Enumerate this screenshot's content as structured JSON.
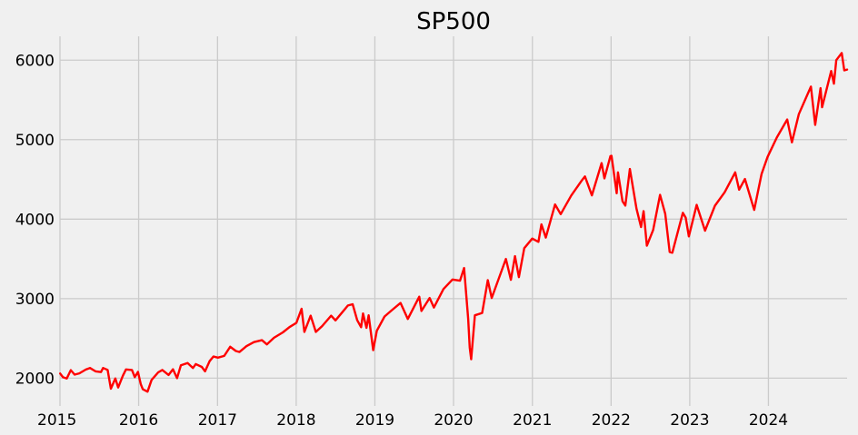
{
  "chart_data": {
    "type": "line",
    "title": "SP500",
    "xlabel": "",
    "ylabel": "",
    "grid": true,
    "legend": "none",
    "xlim": [
      "2015-01-01",
      "2024-12-31"
    ],
    "ylim": [
      1650,
      6300
    ],
    "x_ticks": [
      "2015",
      "2016",
      "2017",
      "2018",
      "2019",
      "2020",
      "2021",
      "2022",
      "2023",
      "2024"
    ],
    "y_ticks": [
      2000,
      3000,
      4000,
      5000,
      6000
    ],
    "series": [
      {
        "color": "#ff0000",
        "points": [
          [
            "2015-01-02",
            2058
          ],
          [
            "2015-01-15",
            2011
          ],
          [
            "2015-02-01",
            1995
          ],
          [
            "2015-02-20",
            2100
          ],
          [
            "2015-03-10",
            2044
          ],
          [
            "2015-04-01",
            2060
          ],
          [
            "2015-05-01",
            2108
          ],
          [
            "2015-05-20",
            2127
          ],
          [
            "2015-06-15",
            2085
          ],
          [
            "2015-07-10",
            2076
          ],
          [
            "2015-07-20",
            2128
          ],
          [
            "2015-08-10",
            2104
          ],
          [
            "2015-08-25",
            1867
          ],
          [
            "2015-09-15",
            1996
          ],
          [
            "2015-09-28",
            1882
          ],
          [
            "2015-10-20",
            2030
          ],
          [
            "2015-11-03",
            2109
          ],
          [
            "2015-12-01",
            2102
          ],
          [
            "2015-12-14",
            2012
          ],
          [
            "2015-12-29",
            2078
          ],
          [
            "2016-01-11",
            1923
          ],
          [
            "2016-01-20",
            1860
          ],
          [
            "2016-02-11",
            1829
          ],
          [
            "2016-03-01",
            1978
          ],
          [
            "2016-04-01",
            2073
          ],
          [
            "2016-04-20",
            2102
          ],
          [
            "2016-05-19",
            2040
          ],
          [
            "2016-06-08",
            2112
          ],
          [
            "2016-06-27",
            2000
          ],
          [
            "2016-07-15",
            2161
          ],
          [
            "2016-08-15",
            2190
          ],
          [
            "2016-09-09",
            2127
          ],
          [
            "2016-09-22",
            2177
          ],
          [
            "2016-10-20",
            2141
          ],
          [
            "2016-11-04",
            2085
          ],
          [
            "2016-11-25",
            2213
          ],
          [
            "2016-12-13",
            2271
          ],
          [
            "2017-01-03",
            2258
          ],
          [
            "2017-02-01",
            2279
          ],
          [
            "2017-03-01",
            2395
          ],
          [
            "2017-03-27",
            2341
          ],
          [
            "2017-04-13",
            2329
          ],
          [
            "2017-05-15",
            2402
          ],
          [
            "2017-06-19",
            2453
          ],
          [
            "2017-07-26",
            2477
          ],
          [
            "2017-08-18",
            2425
          ],
          [
            "2017-09-20",
            2508
          ],
          [
            "2017-10-31",
            2575
          ],
          [
            "2017-12-01",
            2642
          ],
          [
            "2018-01-02",
            2695
          ],
          [
            "2018-01-26",
            2872
          ],
          [
            "2018-02-08",
            2581
          ],
          [
            "2018-03-09",
            2786
          ],
          [
            "2018-04-02",
            2581
          ],
          [
            "2018-05-01",
            2654
          ],
          [
            "2018-06-12",
            2786
          ],
          [
            "2018-07-02",
            2726
          ],
          [
            "2018-08-29",
            2914
          ],
          [
            "2018-09-20",
            2930
          ],
          [
            "2018-10-11",
            2728
          ],
          [
            "2018-10-29",
            2641
          ],
          [
            "2018-11-07",
            2813
          ],
          [
            "2018-11-23",
            2633
          ],
          [
            "2018-12-03",
            2790
          ],
          [
            "2018-12-24",
            2351
          ],
          [
            "2019-01-10",
            2596
          ],
          [
            "2019-02-15",
            2775
          ],
          [
            "2019-03-21",
            2855
          ],
          [
            "2019-04-30",
            2946
          ],
          [
            "2019-06-03",
            2744
          ],
          [
            "2019-07-26",
            3025
          ],
          [
            "2019-08-05",
            2845
          ],
          [
            "2019-09-12",
            3009
          ],
          [
            "2019-10-02",
            2888
          ],
          [
            "2019-11-15",
            3120
          ],
          [
            "2019-12-27",
            3240
          ],
          [
            "2020-01-31",
            3226
          ],
          [
            "2020-02-19",
            3386
          ],
          [
            "2020-03-09",
            2747
          ],
          [
            "2020-03-16",
            2386
          ],
          [
            "2020-03-23",
            2237
          ],
          [
            "2020-04-09",
            2790
          ],
          [
            "2020-05-13",
            2820
          ],
          [
            "2020-06-08",
            3232
          ],
          [
            "2020-06-26",
            3009
          ],
          [
            "2020-08-31",
            3500
          ],
          [
            "2020-09-23",
            3237
          ],
          [
            "2020-10-12",
            3534
          ],
          [
            "2020-10-30",
            3270
          ],
          [
            "2020-11-24",
            3635
          ],
          [
            "2020-12-31",
            3756
          ],
          [
            "2021-01-29",
            3714
          ],
          [
            "2021-02-12",
            3934
          ],
          [
            "2021-03-04",
            3768
          ],
          [
            "2021-04-16",
            4185
          ],
          [
            "2021-05-12",
            4063
          ],
          [
            "2021-06-30",
            4297
          ],
          [
            "2021-08-16",
            4479
          ],
          [
            "2021-09-02",
            4537
          ],
          [
            "2021-10-04",
            4300
          ],
          [
            "2021-11-18",
            4705
          ],
          [
            "2021-12-01",
            4513
          ],
          [
            "2021-12-29",
            4793
          ],
          [
            "2022-01-03",
            4796
          ],
          [
            "2022-01-27",
            4326
          ],
          [
            "2022-02-02",
            4589
          ],
          [
            "2022-02-23",
            4225
          ],
          [
            "2022-03-08",
            4170
          ],
          [
            "2022-03-29",
            4631
          ],
          [
            "2022-04-29",
            4132
          ],
          [
            "2022-05-20",
            3901
          ],
          [
            "2022-06-01",
            4101
          ],
          [
            "2022-06-16",
            3667
          ],
          [
            "2022-07-15",
            3863
          ],
          [
            "2022-08-16",
            4305
          ],
          [
            "2022-09-09",
            4067
          ],
          [
            "2022-09-30",
            3586
          ],
          [
            "2022-10-12",
            3577
          ],
          [
            "2022-11-30",
            4080
          ],
          [
            "2022-12-13",
            4019
          ],
          [
            "2022-12-28",
            3783
          ],
          [
            "2023-02-02",
            4179
          ],
          [
            "2023-03-13",
            3855
          ],
          [
            "2023-04-28",
            4169
          ],
          [
            "2023-06-12",
            4338
          ],
          [
            "2023-07-31",
            4589
          ],
          [
            "2023-08-18",
            4370
          ],
          [
            "2023-09-14",
            4505
          ],
          [
            "2023-10-27",
            4117
          ],
          [
            "2023-11-30",
            4568
          ],
          [
            "2023-12-28",
            4783
          ],
          [
            "2024-02-09",
            5027
          ],
          [
            "2024-03-28",
            5254
          ],
          [
            "2024-04-19",
            4967
          ],
          [
            "2024-05-21",
            5321
          ],
          [
            "2024-07-16",
            5667
          ],
          [
            "2024-08-05",
            5186
          ],
          [
            "2024-08-30",
            5648
          ],
          [
            "2024-09-06",
            5408
          ],
          [
            "2024-10-18",
            5864
          ],
          [
            "2024-10-31",
            5705
          ],
          [
            "2024-11-11",
            6001
          ],
          [
            "2024-12-06",
            6090
          ],
          [
            "2024-12-18",
            5872
          ],
          [
            "2024-12-31",
            5882
          ]
        ]
      }
    ]
  }
}
